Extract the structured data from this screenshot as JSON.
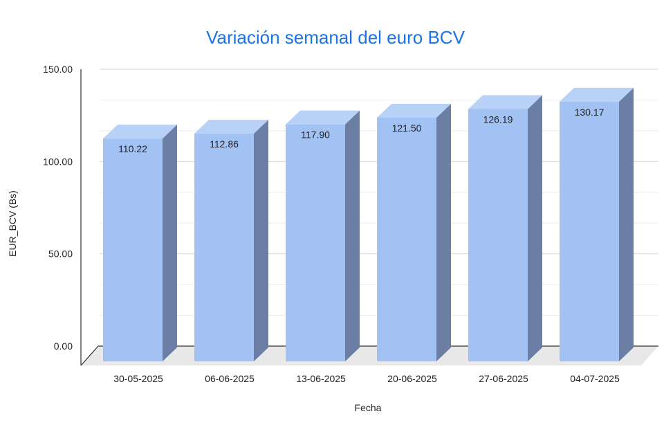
{
  "chart_data": {
    "type": "bar",
    "title": "Variación semanal del euro BCV",
    "xlabel": "Fecha",
    "ylabel": "EUR_BCV (Bs)",
    "categories": [
      "30-05-2025",
      "06-06-2025",
      "13-06-2025",
      "20-06-2025",
      "27-06-2025",
      "04-07-2025"
    ],
    "values": [
      110.22,
      112.86,
      117.9,
      121.5,
      126.19,
      130.17
    ],
    "value_labels": [
      "110.22",
      "112.86",
      "117.90",
      "121.50",
      "126.19",
      "130.17"
    ],
    "ylim": [
      0,
      150
    ],
    "yticks": [
      0,
      50,
      100,
      150
    ],
    "ytick_labels": [
      "0.00",
      "50.00",
      "100.00",
      "150.00"
    ],
    "grid": true,
    "legend": false,
    "style": "3d-column"
  },
  "colors": {
    "title": "#1a73e8",
    "bar_front": "#a3c2f4",
    "bar_top": "#b8d1f7",
    "bar_side": "#6a7fa3",
    "floor": "#e8e8e8",
    "grid_major": "#d9d9d9",
    "grid_minor": "#ececec",
    "axis": "#333333"
  }
}
